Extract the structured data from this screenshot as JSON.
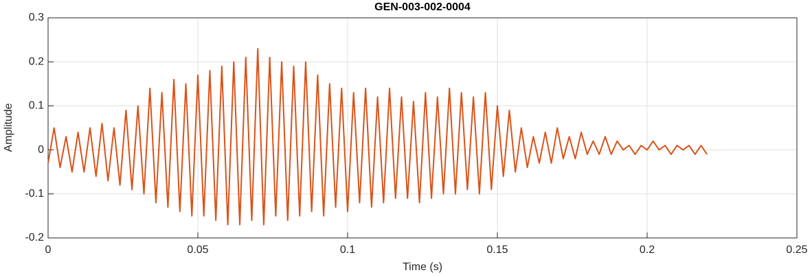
{
  "chart_data": {
    "type": "line",
    "title": "GEN-003-002-0004",
    "xlabel": "Time (s)",
    "ylabel": "Amplitude",
    "x": [
      0,
      0.002,
      0.004,
      0.006,
      0.008,
      0.01,
      0.012,
      0.014,
      0.016,
      0.018,
      0.02,
      0.022,
      0.024,
      0.026,
      0.028,
      0.03,
      0.032,
      0.034,
      0.036,
      0.038,
      0.04,
      0.042,
      0.044,
      0.046,
      0.048,
      0.05,
      0.052,
      0.054,
      0.056,
      0.058,
      0.06,
      0.062,
      0.064,
      0.066,
      0.068,
      0.07,
      0.072,
      0.074,
      0.076,
      0.078,
      0.08,
      0.082,
      0.084,
      0.086,
      0.088,
      0.09,
      0.092,
      0.094,
      0.096,
      0.098,
      0.1,
      0.102,
      0.104,
      0.106,
      0.108,
      0.11,
      0.112,
      0.114,
      0.116,
      0.118,
      0.12,
      0.122,
      0.124,
      0.126,
      0.128,
      0.13,
      0.132,
      0.134,
      0.136,
      0.138,
      0.14,
      0.142,
      0.144,
      0.146,
      0.148,
      0.15,
      0.152,
      0.154,
      0.156,
      0.158,
      0.16,
      0.162,
      0.164,
      0.166,
      0.168,
      0.17,
      0.172,
      0.174,
      0.176,
      0.178,
      0.18,
      0.182,
      0.184,
      0.186,
      0.188,
      0.19,
      0.192,
      0.194,
      0.196,
      0.198,
      0.2,
      0.202,
      0.204,
      0.206,
      0.208,
      0.21,
      0.212,
      0.214,
      0.216,
      0.218,
      0.22
    ],
    "series": [
      {
        "color": "#D95319",
        "values": [
          -0.03,
          0.05,
          -0.04,
          0.03,
          -0.05,
          0.04,
          -0.05,
          0.05,
          -0.06,
          0.06,
          -0.07,
          0.05,
          -0.08,
          0.09,
          -0.09,
          0.1,
          -0.1,
          0.14,
          -0.12,
          0.13,
          -0.13,
          0.16,
          -0.14,
          0.15,
          -0.15,
          0.17,
          -0.15,
          0.18,
          -0.16,
          0.19,
          -0.17,
          0.2,
          -0.17,
          0.21,
          -0.16,
          0.23,
          -0.17,
          0.21,
          -0.15,
          0.2,
          -0.16,
          0.19,
          -0.15,
          0.2,
          -0.14,
          0.17,
          -0.15,
          0.15,
          -0.13,
          0.14,
          -0.14,
          0.13,
          -0.12,
          0.14,
          -0.13,
          0.12,
          -0.12,
          0.14,
          -0.11,
          0.12,
          -0.11,
          0.11,
          -0.12,
          0.13,
          -0.11,
          0.12,
          -0.1,
          0.14,
          -0.1,
          0.13,
          -0.09,
          0.12,
          -0.1,
          0.13,
          -0.09,
          0.1,
          -0.06,
          0.09,
          -0.05,
          0.05,
          -0.04,
          0.03,
          -0.03,
          0.04,
          -0.03,
          0.05,
          -0.02,
          0.03,
          -0.02,
          0.04,
          -0.01,
          0.02,
          -0.01,
          0.03,
          -0.01,
          0.02,
          0,
          0.01,
          -0.01,
          0.01,
          0,
          0.02,
          0,
          0.01,
          -0.01,
          0.01,
          0,
          0.01,
          -0.01,
          0.01,
          -0.01
        ]
      }
    ],
    "xlim": [
      0,
      0.25
    ],
    "xticks": [
      0,
      0.05,
      0.1,
      0.15,
      0.2,
      0.25
    ],
    "ylim": [
      -0.2,
      0.3
    ],
    "yticks": [
      -0.2,
      -0.1,
      0,
      0.1,
      0.2,
      0.3
    ],
    "grid": true
  }
}
